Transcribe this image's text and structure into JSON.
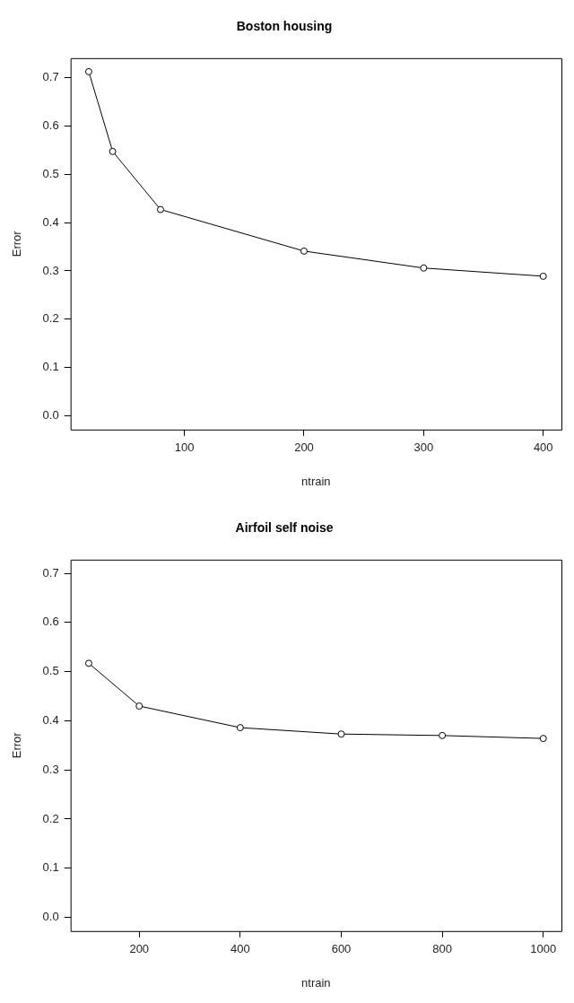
{
  "chart_data": [
    {
      "type": "line",
      "title": "Boston housing",
      "xlabel": "ntrain",
      "ylabel": "Error",
      "x": [
        20,
        40,
        80,
        200,
        300,
        400
      ],
      "series": [
        {
          "color": "#000000",
          "values": [
            0.712,
            0.547,
            0.427,
            0.341,
            0.306,
            0.289
          ]
        }
      ],
      "xlim": [
        4.8,
        415.2
      ],
      "xticks": [
        100,
        200,
        300,
        400
      ],
      "ylim": [
        -0.028,
        0.74
      ],
      "yticks": [
        {
          "value": 0,
          "label": "0.0"
        },
        0.1,
        0.2,
        0.3,
        0.4,
        0.5,
        0.6,
        0.7
      ],
      "grid": false,
      "legend": false,
      "marker": "circle",
      "line_style": "solid"
    },
    {
      "type": "line",
      "title": "Airfoil self noise",
      "xlabel": "ntrain",
      "ylabel": "Error",
      "x": [
        100,
        200,
        400,
        600,
        800,
        1000
      ],
      "series": [
        {
          "color": "#000000",
          "values": [
            0.517,
            0.43,
            0.386,
            0.373,
            0.37,
            0.364
          ]
        }
      ],
      "xlim": [
        64,
        1036
      ],
      "xticks": [
        200,
        400,
        600,
        800,
        1000
      ],
      "ylim": [
        -0.028,
        0.728
      ],
      "yticks": [
        {
          "value": 0,
          "label": "0.0"
        },
        0.1,
        0.2,
        0.3,
        0.4,
        0.5,
        0.6,
        0.7
      ],
      "grid": false,
      "legend": false,
      "marker": "circle",
      "line_style": "solid"
    }
  ]
}
